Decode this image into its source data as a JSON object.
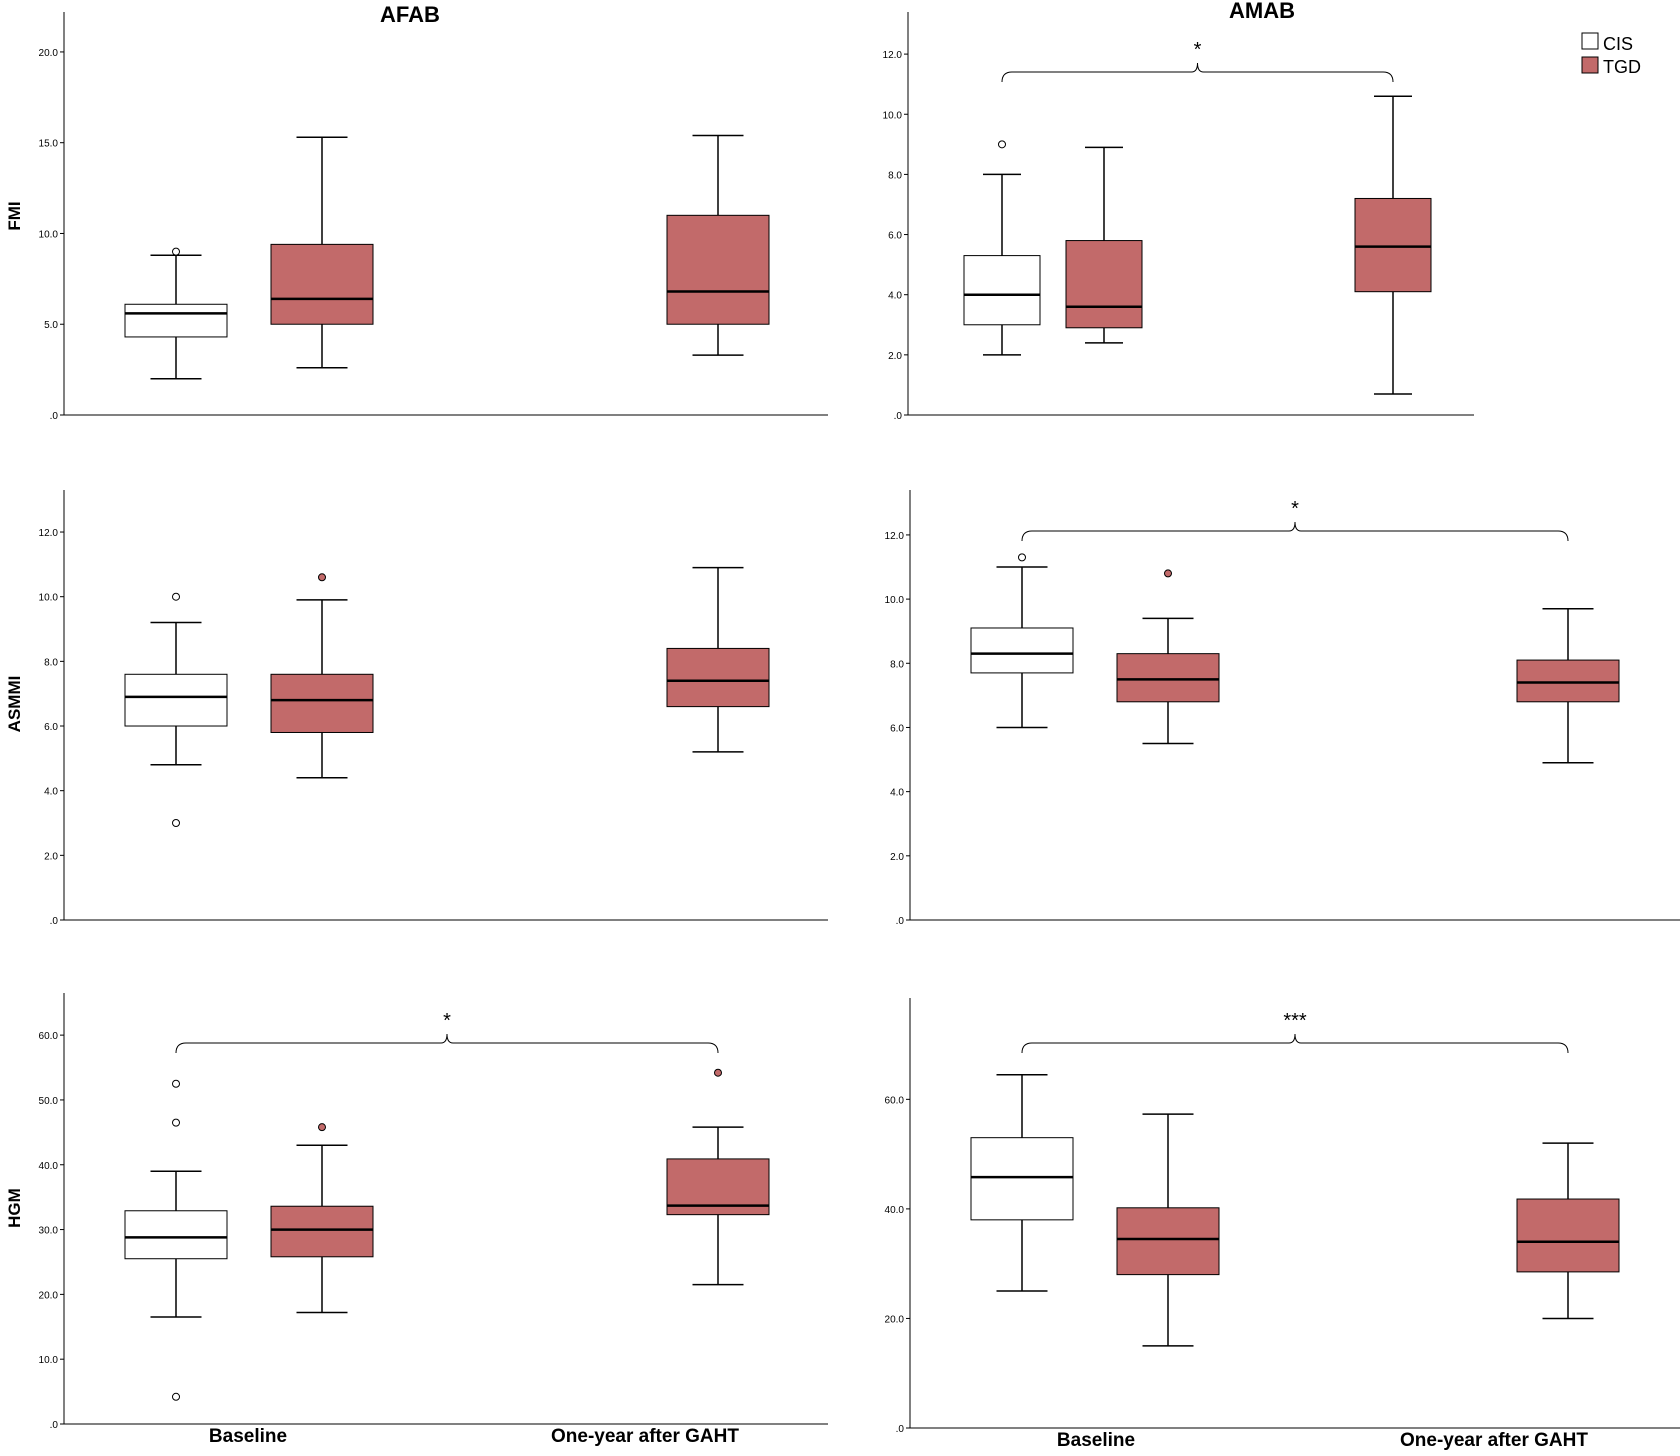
{
  "figure": {
    "column_titles": [
      "AFAB",
      "AMAB"
    ],
    "x_categories": [
      "Baseline",
      "One-year after GAHT"
    ],
    "legend": [
      {
        "label": "CIS",
        "color": "#ffffff"
      },
      {
        "label": "TGD",
        "color": "#c26a6a"
      }
    ]
  },
  "chart_data": [
    {
      "type": "boxplot",
      "column": "AFAB",
      "ylabel": "FMI",
      "ylim": [
        0,
        22.2
      ],
      "ticks": [
        0,
        5,
        10,
        15,
        20
      ],
      "tick_labels": [
        ".0",
        "5.0",
        "10.0",
        "15.0",
        "20.0"
      ],
      "categories": [
        "Baseline",
        "One-year after GAHT"
      ],
      "series": [
        {
          "name": "CIS",
          "group": "Baseline",
          "min": 2.0,
          "q1": 4.3,
          "median": 5.6,
          "q3": 6.1,
          "max": 8.8,
          "outliers": [
            9.0
          ]
        },
        {
          "name": "TGD",
          "group": "Baseline",
          "min": 2.6,
          "q1": 5.0,
          "median": 6.4,
          "q3": 9.4,
          "max": 15.3,
          "outliers": []
        },
        {
          "name": "TGD",
          "group": "One-year after GAHT",
          "min": 3.3,
          "q1": 5.0,
          "median": 6.8,
          "q3": 11.0,
          "max": 15.4,
          "outliers": []
        }
      ],
      "significance": []
    },
    {
      "type": "boxplot",
      "column": "AMAB",
      "ylabel": "",
      "ylim": [
        0,
        13.4
      ],
      "ticks": [
        0,
        2,
        4,
        6,
        8,
        10,
        12
      ],
      "tick_labels": [
        ".0",
        "2.0",
        "4.0",
        "6.0",
        "8.0",
        "10.0",
        "12.0"
      ],
      "categories": [
        "Baseline",
        "One-year after GAHT"
      ],
      "series": [
        {
          "name": "CIS",
          "group": "Baseline",
          "min": 2.0,
          "q1": 3.0,
          "median": 4.0,
          "q3": 5.3,
          "max": 8.0,
          "outliers": [
            9.0
          ]
        },
        {
          "name": "TGD",
          "group": "Baseline",
          "min": 2.4,
          "q1": 2.9,
          "median": 3.6,
          "q3": 5.8,
          "max": 8.9,
          "outliers": []
        },
        {
          "name": "TGD",
          "group": "One-year after GAHT",
          "min": 0.7,
          "q1": 4.1,
          "median": 5.6,
          "q3": 7.2,
          "max": 10.6,
          "outliers": []
        }
      ],
      "significance": [
        {
          "from": "CIS Baseline",
          "to": "TGD One-year after GAHT",
          "label": "*"
        }
      ]
    },
    {
      "type": "boxplot",
      "column": "AFAB",
      "ylabel": "ASMMI",
      "ylim": [
        0,
        13.3
      ],
      "ticks": [
        0,
        2,
        4,
        6,
        8,
        10,
        12
      ],
      "tick_labels": [
        ".0",
        "2.0",
        "4.0",
        "6.0",
        "8.0",
        "10.0",
        "12.0"
      ],
      "categories": [
        "Baseline",
        "One-year after GAHT"
      ],
      "series": [
        {
          "name": "CIS",
          "group": "Baseline",
          "min": 4.8,
          "q1": 6.0,
          "median": 6.9,
          "q3": 7.6,
          "max": 9.2,
          "outliers": [
            10.0,
            3.0
          ]
        },
        {
          "name": "TGD",
          "group": "Baseline",
          "min": 4.4,
          "q1": 5.8,
          "median": 6.8,
          "q3": 7.6,
          "max": 9.9,
          "outliers": [
            10.6
          ]
        },
        {
          "name": "TGD",
          "group": "One-year after GAHT",
          "min": 5.2,
          "q1": 6.6,
          "median": 7.4,
          "q3": 8.4,
          "max": 10.9,
          "outliers": []
        }
      ],
      "significance": []
    },
    {
      "type": "boxplot",
      "column": "AMAB",
      "ylabel": "",
      "ylim": [
        0,
        13.4
      ],
      "ticks": [
        0,
        2,
        4,
        6,
        8,
        10,
        12
      ],
      "tick_labels": [
        ".0",
        "2.0",
        "4.0",
        "6.0",
        "8.0",
        "10.0",
        "12.0"
      ],
      "categories": [
        "Baseline",
        "One-year after GAHT"
      ],
      "series": [
        {
          "name": "CIS",
          "group": "Baseline",
          "min": 6.0,
          "q1": 7.7,
          "median": 8.3,
          "q3": 9.1,
          "max": 11.0,
          "outliers": [
            11.3
          ]
        },
        {
          "name": "TGD",
          "group": "Baseline",
          "min": 5.5,
          "q1": 6.8,
          "median": 7.5,
          "q3": 8.3,
          "max": 9.4,
          "outliers": [
            10.8
          ]
        },
        {
          "name": "TGD",
          "group": "One-year after GAHT",
          "min": 4.9,
          "q1": 6.8,
          "median": 7.4,
          "q3": 8.1,
          "max": 9.7,
          "outliers": []
        }
      ],
      "significance": [
        {
          "from": "CIS Baseline",
          "to": "TGD One-year after GAHT",
          "label": "*"
        }
      ]
    },
    {
      "type": "boxplot",
      "column": "AFAB",
      "ylabel": "HGM",
      "ylim": [
        0,
        66.5
      ],
      "ticks": [
        0,
        10,
        20,
        30,
        40,
        50,
        60
      ],
      "tick_labels": [
        ".0",
        "10.0",
        "20.0",
        "30.0",
        "40.0",
        "50.0",
        "60.0"
      ],
      "categories": [
        "Baseline",
        "One-year after GAHT"
      ],
      "series": [
        {
          "name": "CIS",
          "group": "Baseline",
          "min": 16.5,
          "q1": 25.5,
          "median": 28.8,
          "q3": 32.9,
          "max": 39.0,
          "outliers": [
            52.5,
            46.5,
            4.2
          ]
        },
        {
          "name": "TGD",
          "group": "Baseline",
          "min": 17.2,
          "q1": 25.8,
          "median": 30.0,
          "q3": 33.6,
          "max": 43.0,
          "outliers": [
            45.8
          ]
        },
        {
          "name": "TGD",
          "group": "One-year after GAHT",
          "min": 21.5,
          "q1": 32.3,
          "median": 33.7,
          "q3": 40.9,
          "max": 45.8,
          "outliers": [
            54.2
          ]
        }
      ],
      "significance": [
        {
          "from": "CIS Baseline",
          "to": "TGD One-year after GAHT",
          "label": "*"
        }
      ]
    },
    {
      "type": "boxplot",
      "column": "AMAB",
      "ylabel": "",
      "ylim": [
        0,
        78.5
      ],
      "ticks": [
        0,
        20,
        40,
        60
      ],
      "tick_labels": [
        ".0",
        "20.0",
        "40.0",
        "60.0"
      ],
      "categories": [
        "Baseline",
        "One-year after GAHT"
      ],
      "series": [
        {
          "name": "CIS",
          "group": "Baseline",
          "min": 25.0,
          "q1": 38.0,
          "median": 45.8,
          "q3": 53.0,
          "max": 64.5,
          "outliers": []
        },
        {
          "name": "TGD",
          "group": "Baseline",
          "min": 15.0,
          "q1": 28.0,
          "median": 34.5,
          "q3": 40.2,
          "max": 57.3,
          "outliers": []
        },
        {
          "name": "TGD",
          "group": "One-year after GAHT",
          "min": 20.0,
          "q1": 28.5,
          "median": 34.0,
          "q3": 41.8,
          "max": 52.0,
          "outliers": []
        }
      ],
      "significance": [
        {
          "from": "CIS Baseline",
          "to": "TGD One-year after GAHT",
          "label": "***"
        }
      ]
    }
  ]
}
